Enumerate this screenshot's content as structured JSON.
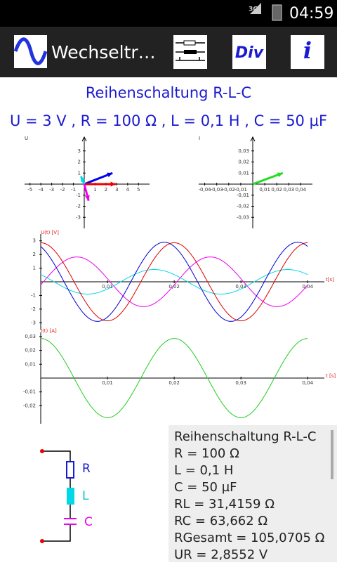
{
  "status_bar": {
    "network": "3G",
    "time": "04:59"
  },
  "action_bar": {
    "title": "Wechseltr…",
    "div_button": "Div",
    "info_button": "i"
  },
  "header": {
    "title": "Reihenschaltung R-L-C",
    "parameters": "U = 3 V , R = 100 Ω , L = 0,1 H , C = 50 µF"
  },
  "chart_data": [
    {
      "type": "phasor",
      "y_label": "U",
      "xlim": [
        -5.5,
        5.5
      ],
      "ylim": [
        -4,
        4
      ],
      "xticks": [
        -5,
        -4,
        -3,
        -2,
        -1,
        1,
        2,
        3,
        4,
        5
      ],
      "yticks": [
        3,
        2,
        1,
        -1,
        -2,
        -3
      ],
      "vectors": [
        {
          "color": "#0000ee",
          "x": 2.6,
          "y": 1.0
        },
        {
          "color": "#ee0000",
          "x": 2.9,
          "y": 0
        },
        {
          "color": "#00d8e8",
          "x": -0.3,
          "y": 0.7
        },
        {
          "color": "#ee00ee",
          "x": 0.4,
          "y": -1.5
        }
      ]
    },
    {
      "type": "phasor",
      "y_label": "I",
      "xlim": [
        -0.045,
        0.045
      ],
      "ylim": [
        -0.04,
        0.04
      ],
      "xticks": [
        {
          "value": -0.04,
          "label": "-0,04"
        },
        {
          "value": -0.03,
          "label": "-0,03"
        },
        {
          "value": -0.02,
          "label": "-0,02"
        },
        {
          "value": -0.01,
          "label": "-0,01"
        },
        {
          "value": 0.01,
          "label": "0,01"
        },
        {
          "value": 0.02,
          "label": "0,02"
        },
        {
          "value": 0.03,
          "label": "0,03"
        },
        {
          "value": 0.04,
          "label": "0,04"
        }
      ],
      "yticks": [
        {
          "value": 0.03,
          "label": "0,03"
        },
        {
          "value": 0.02,
          "label": "0,02"
        },
        {
          "value": 0.01,
          "label": "0,01"
        },
        {
          "value": -0.01,
          "label": "-0,01"
        },
        {
          "value": -0.02,
          "label": "-0,02"
        },
        {
          "value": -0.03,
          "label": "-0,03"
        }
      ],
      "vectors": [
        {
          "color": "#22dd22",
          "x": 0.025,
          "y": 0.01
        }
      ]
    },
    {
      "type": "wave",
      "y_label": "U(t) [V]",
      "x_label": "t[s]",
      "xlim": [
        0,
        0.0425
      ],
      "ylim": [
        -3.5,
        3.5
      ],
      "frequency": 50,
      "xticks": [
        {
          "value": 0.01,
          "label": "0,01"
        },
        {
          "value": 0.02,
          "label": "0,02"
        },
        {
          "value": 0.03,
          "label": "0,03"
        },
        {
          "value": 0.04,
          "label": "0,04"
        }
      ],
      "yticks": [
        3,
        2,
        1,
        -1,
        -2,
        -3
      ],
      "series": [
        {
          "color": "#ee00ee",
          "amplitude": 1.82,
          "peak_t": 0.0054
        },
        {
          "color": "#00d8e8",
          "amplitude": 0.9,
          "peak_t": 0.017
        },
        {
          "color": "#0000cc",
          "amplitude": 2.9,
          "peak_t": 0.0185
        },
        {
          "color": "#dd0000",
          "amplitude": 2.86,
          "peak_t": 0.02
        }
      ]
    },
    {
      "type": "wave",
      "y_label": "I(t) [A]",
      "x_label": "t [s]",
      "xlim": [
        0,
        0.0425
      ],
      "ylim": [
        -0.033,
        0.033
      ],
      "frequency": 50,
      "xticks": [
        {
          "value": 0.01,
          "label": "0,01"
        },
        {
          "value": 0.02,
          "label": "0,02"
        },
        {
          "value": 0.03,
          "label": "0,03"
        },
        {
          "value": 0.04,
          "label": "0,04"
        }
      ],
      "yticks": [
        {
          "value": 0.03,
          "label": "0,03"
        },
        {
          "value": 0.02,
          "label": "0,02"
        },
        {
          "value": 0.01,
          "label": "0,01"
        },
        {
          "value": -0.01,
          "label": "-0,01"
        },
        {
          "value": -0.02,
          "label": "-0,02"
        }
      ],
      "series": [
        {
          "color": "#22cc22",
          "amplitude": 0.0286,
          "peak_t": 0.02
        }
      ]
    }
  ],
  "circuit": {
    "r_label": "R",
    "l_label": "L",
    "c_label": "C"
  },
  "results": [
    "Reihenschaltung R-L-C",
    "R = 100 Ω",
    "L = 0,1 H",
    "C = 50 µF",
    "RL = 31,4159 Ω",
    "RC = 63,662 Ω",
    "RGesamt = 105,0705 Ω",
    "UR = 2,8552 V"
  ]
}
